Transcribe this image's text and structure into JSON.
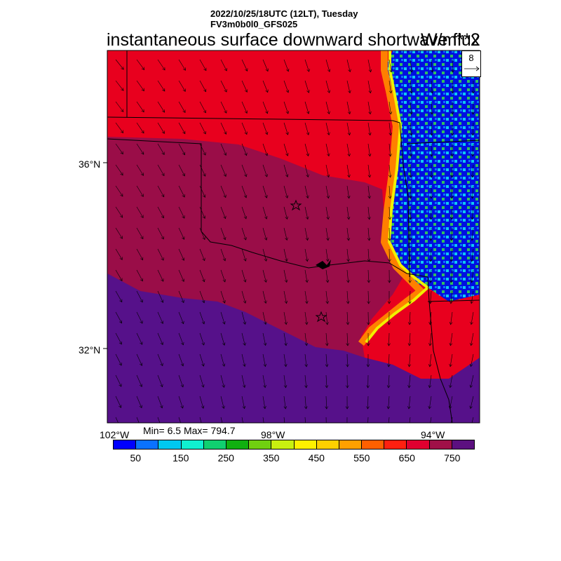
{
  "header": {
    "datetime": "2022/10/25/18UTC (12LT), Tuesday",
    "model": "FV3m0b0l0_GFS025",
    "title": "instantaneous surface downward shortwave flux",
    "units": "W/m**2"
  },
  "axes": {
    "lat_labels": [
      "36°N",
      "32°N"
    ],
    "lon_labels": [
      "102°W",
      "98°W",
      "94°W"
    ]
  },
  "stats": "Min= 6.5 Max= 794.7",
  "wind_reference": {
    "value": "8"
  },
  "colorbar": {
    "colors": [
      "#0000ff",
      "#0a72ff",
      "#00c8f0",
      "#10f0d0",
      "#10d070",
      "#10b010",
      "#70d010",
      "#c8f010",
      "#fff000",
      "#ffd000",
      "#ffa000",
      "#ff6000",
      "#ff2010",
      "#e00030",
      "#a01048",
      "#5c1080"
    ],
    "labels": [
      "50",
      "150",
      "250",
      "350",
      "450",
      "550",
      "650",
      "750"
    ]
  },
  "map_colors": {
    "red": "#e8001e",
    "maroon": "#9a0d48",
    "purple": "#56118a",
    "blue": "#0000f0",
    "cyan": "#10c8f0",
    "green": "#30c060",
    "yellow": "#f0f000",
    "orange": "#ff8000"
  }
}
